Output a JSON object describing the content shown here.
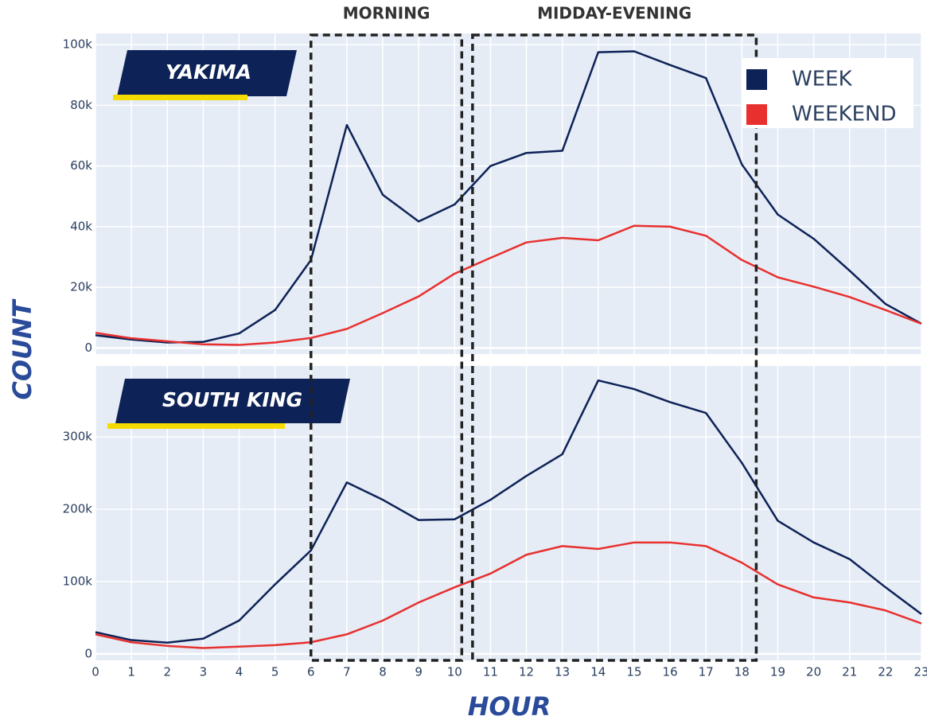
{
  "chart_data": [
    {
      "type": "line",
      "title": "YAKIMA",
      "ylabel": "COUNT",
      "legend": "top-right",
      "annotations": [
        {
          "text": "MORNING",
          "x0": 6,
          "x1": 10.2
        },
        {
          "text": "MIDDAY-EVENING",
          "x0": 10.5,
          "x1": 18.4
        }
      ],
      "x": [
        0,
        1,
        2,
        3,
        4,
        5,
        6,
        7,
        8,
        9,
        10,
        11,
        12,
        13,
        14,
        15,
        16,
        17,
        18,
        19,
        20,
        21,
        22,
        23
      ],
      "series": [
        {
          "name": "WEEK",
          "color": "#0d2256",
          "values": [
            4200,
            2800,
            1800,
            2000,
            4800,
            12500,
            29000,
            73500,
            50500,
            41700,
            47300,
            60000,
            64300,
            65000,
            97500,
            97800,
            93300,
            89000,
            60500,
            44000,
            36000,
            25500,
            14500,
            8000
          ]
        },
        {
          "name": "WEEKEND",
          "color": "#e8302e",
          "values": [
            5000,
            3200,
            2200,
            1200,
            1000,
            1800,
            3300,
            6300,
            11500,
            17000,
            24500,
            29700,
            34800,
            36300,
            35500,
            40300,
            40000,
            37000,
            29000,
            23300,
            20200,
            16800,
            12500,
            8000
          ]
        }
      ],
      "ylim": [
        -2000,
        103700
      ],
      "yticks": [
        0,
        {
          "value": 20000,
          "label": "20k"
        },
        {
          "value": 40000,
          "label": "40k"
        },
        {
          "value": 60000,
          "label": "60k"
        },
        {
          "value": 80000,
          "label": "80k"
        },
        {
          "value": 100000,
          "label": "100k"
        }
      ],
      "grid": true
    },
    {
      "type": "line",
      "title": "SOUTH KING",
      "xlabel": "HOUR",
      "x": [
        0,
        1,
        2,
        3,
        4,
        5,
        6,
        7,
        8,
        9,
        10,
        11,
        12,
        13,
        14,
        15,
        16,
        17,
        18,
        19,
        20,
        21,
        22,
        23
      ],
      "series": [
        {
          "color": "#0d2256",
          "values": [
            30000,
            19000,
            15500,
            21000,
            46000,
            96000,
            143000,
            237000,
            213000,
            185000,
            186000,
            213000,
            246000,
            276000,
            378000,
            366000,
            348000,
            333000,
            264000,
            184000,
            154000,
            131000,
            92000,
            55000
          ]
        },
        {
          "color": "#e8302e",
          "values": [
            27000,
            16000,
            11000,
            8000,
            10000,
            12000,
            16000,
            27000,
            46000,
            71000,
            92000,
            111000,
            137000,
            149000,
            145000,
            154000,
            154000,
            149000,
            126000,
            96000,
            78000,
            71000,
            60000,
            42000
          ]
        }
      ],
      "xlim": [
        0,
        23
      ],
      "xticks": [
        0,
        1,
        2,
        3,
        4,
        5,
        6,
        7,
        8,
        9,
        10,
        11,
        12,
        13,
        14,
        15,
        16,
        17,
        18,
        19,
        20,
        21,
        22,
        23
      ],
      "ylim": [
        -9000,
        398000
      ],
      "yticks": [
        0,
        {
          "value": 100000,
          "label": "100k"
        },
        {
          "value": 200000,
          "label": "200k"
        },
        {
          "value": 300000,
          "label": "300k"
        }
      ],
      "grid": true
    }
  ]
}
